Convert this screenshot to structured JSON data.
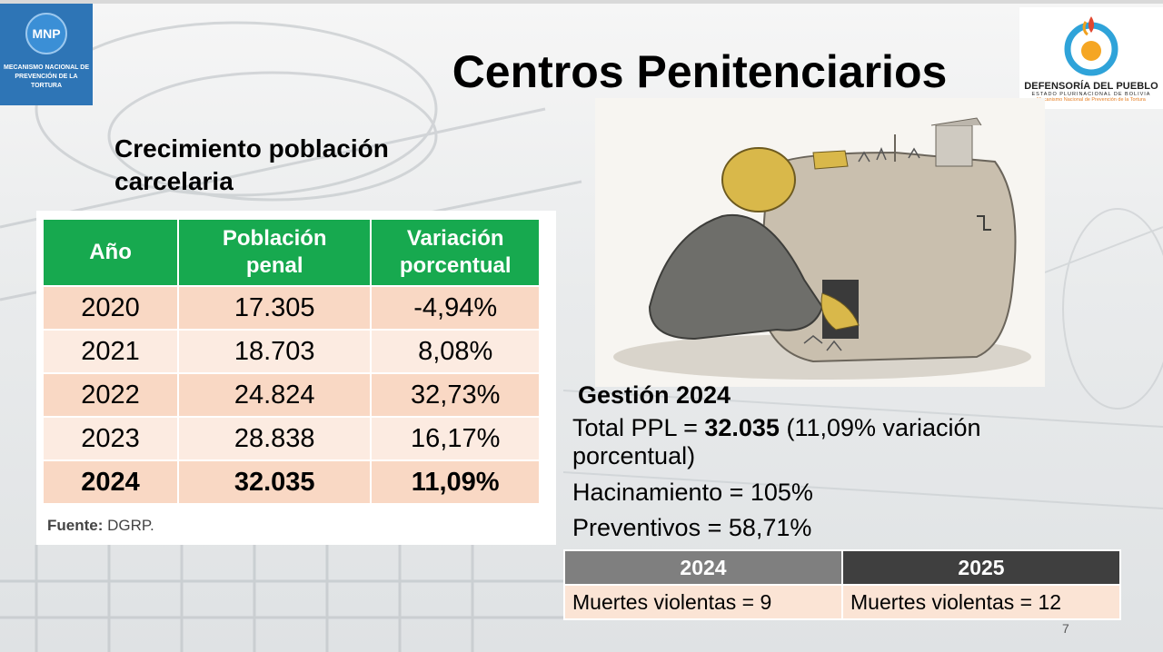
{
  "slide": {
    "title": "Centros Penitenciarios",
    "page_number": "7"
  },
  "logos": {
    "mnp": {
      "abbr": "MNP",
      "name": "MECANISMO NACIONAL DE PREVENCIÓN DE LA TORTURA"
    },
    "defensoria": {
      "name": "DEFENSORÍA DEL PUEBLO",
      "sub": "ESTADO PLURINACIONAL DE BOLIVIA",
      "sub2": "Mecanismo Nacional de Prevención de la Tortura"
    }
  },
  "population": {
    "heading": "Crecimiento población carcelaria",
    "headers": [
      "Año",
      "Población penal",
      "Variación porcentual"
    ],
    "rows": [
      {
        "year": "2020",
        "population": "17.305",
        "variation": "-4,94%"
      },
      {
        "year": "2021",
        "population": "18.703",
        "variation": "8,08%"
      },
      {
        "year": "2022",
        "population": "24.824",
        "variation": "32,73%"
      },
      {
        "year": "2023",
        "population": "28.838",
        "variation": "16,17%"
      },
      {
        "year": "2024",
        "population": "32.035",
        "variation": "11,09%"
      }
    ],
    "source_label": "Fuente:",
    "source_value": "DGRP."
  },
  "gestion": {
    "title": "Gestión 2024",
    "ppl_prefix": "Total PPL = ",
    "ppl_value": "32.035",
    "ppl_suffix": " (11,09% variación porcentual)",
    "hacinamiento": "Hacinamiento = 105%",
    "preventivos": "Preventivos = 58,71%"
  },
  "deaths": {
    "headers": [
      "2024",
      "2025"
    ],
    "values": [
      "Muertes violentas = 9",
      "Muertes violentas = 12"
    ]
  },
  "colors": {
    "header_green": "#17a94f",
    "row_peach": "#f9d8c4",
    "row_light": "#fcebe1",
    "mnp_blue": "#2e75b6"
  }
}
